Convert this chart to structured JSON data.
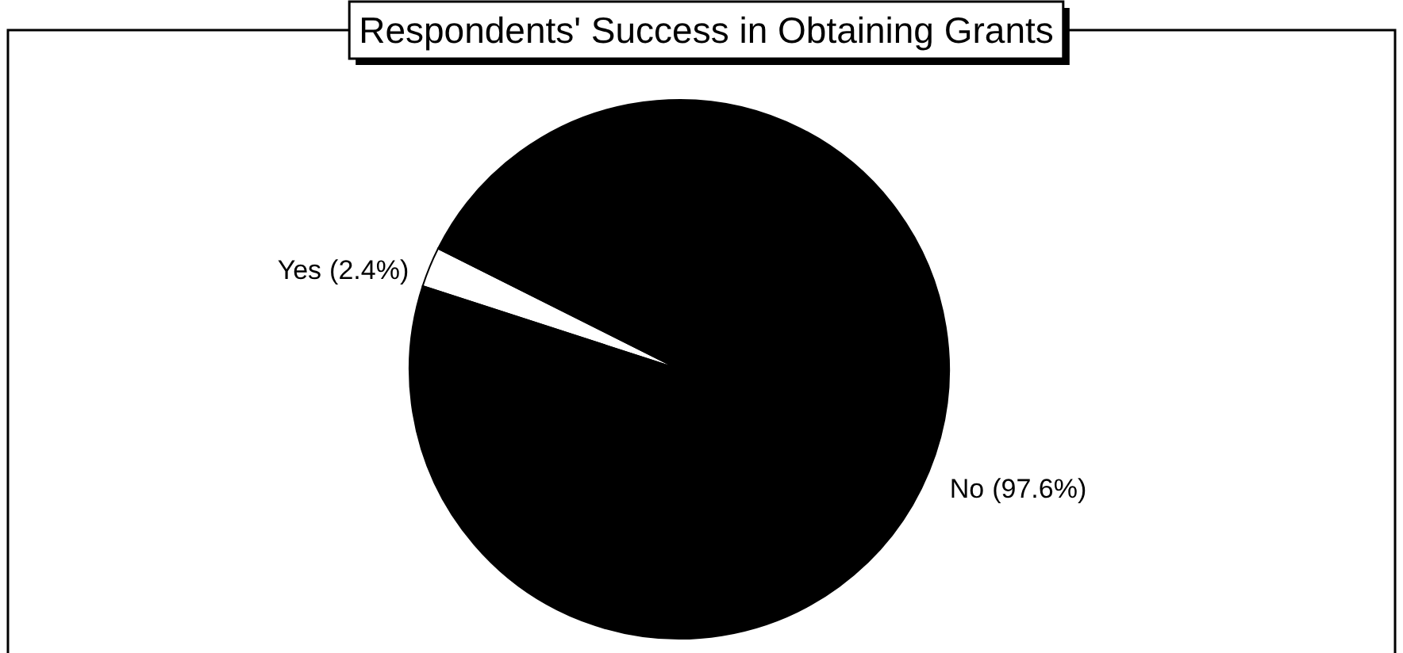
{
  "chart_data": {
    "type": "pie",
    "title": "Respondents' Success in Obtaining Grants",
    "categories": [
      "Yes",
      "No"
    ],
    "values": [
      2.4,
      97.6
    ],
    "colors": [
      "#ffffff",
      "#000000"
    ],
    "value_labels": [
      "(2.4%)",
      "(97.6%)"
    ]
  }
}
